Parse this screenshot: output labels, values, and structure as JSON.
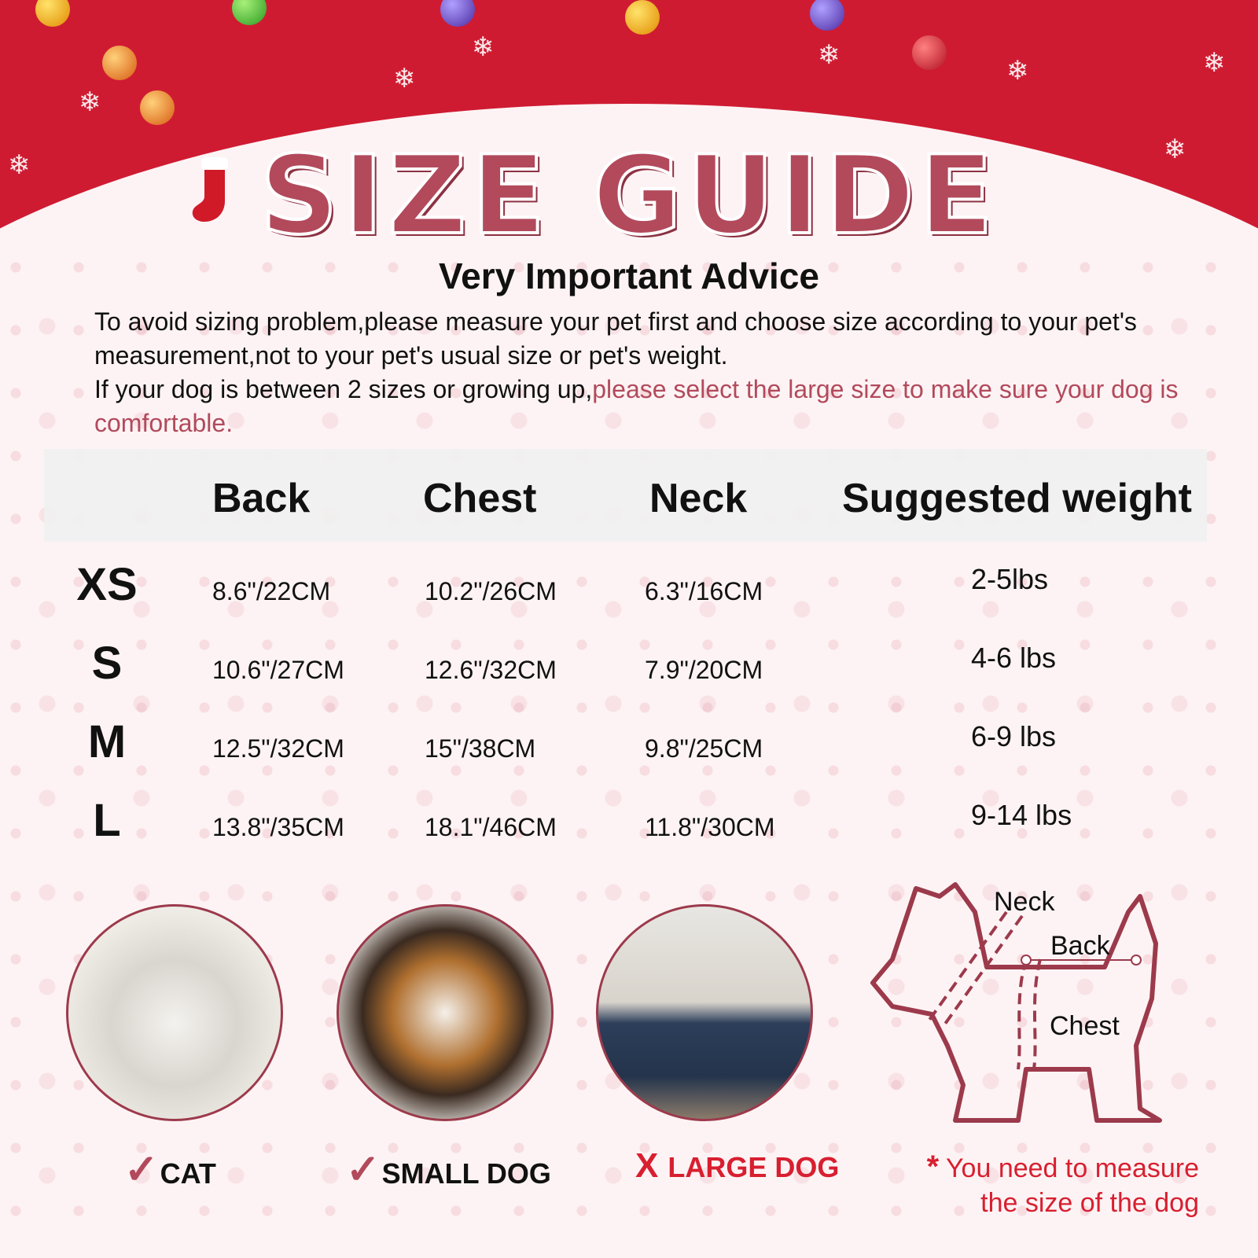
{
  "title": "SIZE GUIDE",
  "advice_heading": "Very Important Advice",
  "paragraph": {
    "line1": "To avoid sizing problem,please measure your pet first and choose size according to your pet's measurement,not to your pet's usual size or pet's weight.",
    "line2_plain": "If your dog is between 2 sizes or growing up,",
    "line2_highlight": "please select the large size to make sure your dog is comfortable."
  },
  "table": {
    "headers": [
      "Back",
      "Chest",
      "Neck",
      "Suggested weight"
    ],
    "rows": [
      {
        "size": "XS",
        "back": "8.6\"/22CM",
        "chest": "10.2\"/26CM",
        "neck": "6.3\"/16CM",
        "weight": "2-5lbs"
      },
      {
        "size": "S",
        "back": "10.6\"/27CM",
        "chest": "12.6\"/32CM",
        "neck": "7.9\"/20CM",
        "weight": "4-6 lbs"
      },
      {
        "size": "M",
        "back": "12.5\"/32CM",
        "chest": "15\"/38CM",
        "neck": "9.8\"/25CM",
        "weight": "6-9 lbs"
      },
      {
        "size": "L",
        "back": "13.8\"/35CM",
        "chest": "18.1\"/46CM",
        "neck": "11.8\"/30CM",
        "weight": "9-14 lbs"
      }
    ]
  },
  "pets": [
    {
      "label": "CAT",
      "mark": "✓",
      "suitable": true
    },
    {
      "label": "SMALL DOG",
      "mark": "✓",
      "suitable": true
    },
    {
      "label": "LARGE DOG",
      "mark": "X",
      "suitable": false
    }
  ],
  "diagram": {
    "neck": "Neck",
    "back": "Back",
    "chest": "Chest"
  },
  "note": {
    "star": "*",
    "line1": "You need to measure",
    "line2": "the size of the dog"
  },
  "colors": {
    "header_red": "#cf1b32",
    "accent": "#b24a5c",
    "warning_red": "#d81f30"
  }
}
